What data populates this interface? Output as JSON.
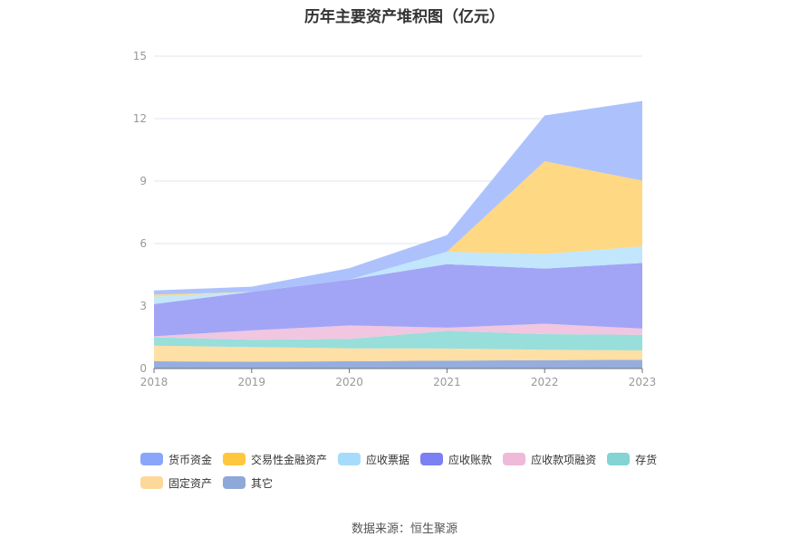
{
  "chart_data": {
    "type": "area",
    "stacked": true,
    "title": "历年主要资产堆积图（亿元）",
    "categories": [
      "2018",
      "2019",
      "2020",
      "2021",
      "2022",
      "2023"
    ],
    "ylim": [
      0,
      15
    ],
    "yticks": [
      "0",
      "3",
      "6",
      "9",
      "12",
      "15"
    ],
    "grid": true,
    "legend_position": "bottom",
    "series": [
      {
        "name": "其它",
        "color": "#8faadc",
        "values": [
          0.35,
          0.33,
          0.35,
          0.38,
          0.4,
          0.42
        ]
      },
      {
        "name": "固定资产",
        "color": "#fedda1",
        "values": [
          0.75,
          0.7,
          0.62,
          0.58,
          0.5,
          0.45
        ]
      },
      {
        "name": "存货",
        "color": "#92dcd9",
        "values": [
          0.4,
          0.35,
          0.45,
          0.85,
          0.75,
          0.75
        ]
      },
      {
        "name": "应收款项融资",
        "color": "#efc3de",
        "values": [
          0.05,
          0.45,
          0.65,
          0.15,
          0.5,
          0.3
        ]
      },
      {
        "name": "应收账款",
        "color": "#9da0f6",
        "values": [
          1.55,
          1.85,
          2.2,
          3.05,
          2.65,
          3.15
        ]
      },
      {
        "name": "应收票据",
        "color": "#bfe5fc",
        "values": [
          0.35,
          0.0,
          0.0,
          0.6,
          0.7,
          0.8
        ]
      },
      {
        "name": "交易性金融资产",
        "color": "#fed67b",
        "values": [
          0.1,
          0.0,
          0.0,
          0.0,
          4.45,
          3.15
        ]
      },
      {
        "name": "货币资金",
        "color": "#a9bffc",
        "values": [
          0.2,
          0.25,
          0.55,
          0.8,
          2.2,
          3.83
        ]
      }
    ]
  },
  "legend": {
    "row1": [
      {
        "name": "货币资金",
        "color": "#8aa6fb"
      },
      {
        "name": "交易性金融资产",
        "color": "#fec73d"
      },
      {
        "name": "应收票据",
        "color": "#a6dcfb"
      },
      {
        "name": "应收账款",
        "color": "#7b80f2"
      },
      {
        "name": "应收款项融资",
        "color": "#efb9d9"
      },
      {
        "name": "存货",
        "color": "#83d4d2"
      }
    ],
    "row2": [
      {
        "name": "固定资产",
        "color": "#fdd89b"
      },
      {
        "name": "其它",
        "color": "#8ea8d8"
      }
    ]
  },
  "source": "数据来源：恒生聚源"
}
